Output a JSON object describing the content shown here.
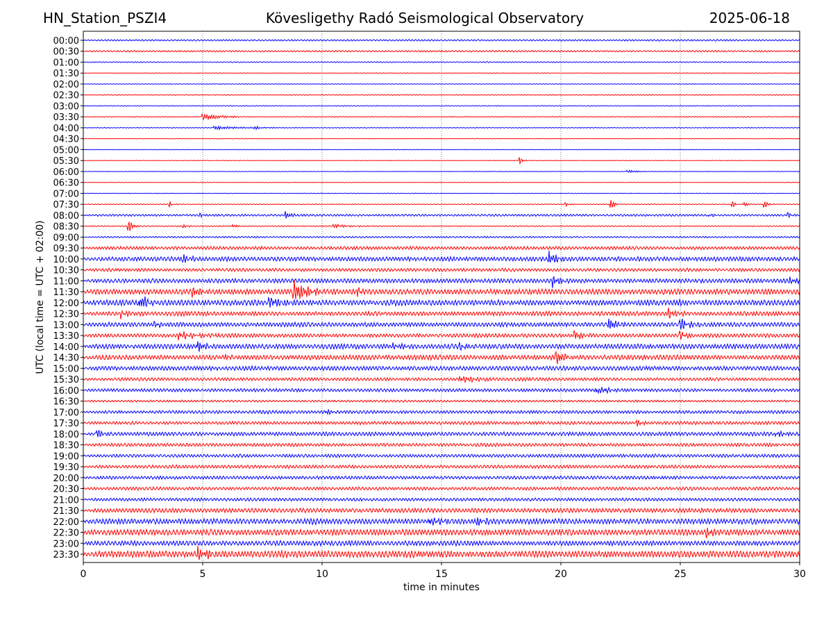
{
  "chart_data": {
    "type": "line",
    "subtype": "helicorder",
    "title_left": "HN_Station_PSZI4",
    "title_center": "Kövesligethy Radó Seismological Observatory",
    "title_right": "2025-06-18",
    "xlabel": "time in minutes",
    "ylabel": "UTC (local time = UTC + 02:00)",
    "xlim": [
      0,
      30
    ],
    "xticks": [
      "0",
      "5",
      "10",
      "15",
      "20",
      "25",
      "30"
    ],
    "grid": "vertical dotted at 5-minute ticks",
    "colors": [
      "#0000ff",
      "#ff0000"
    ],
    "rows": [
      "00:00",
      "00:30",
      "01:00",
      "01:30",
      "02:00",
      "02:30",
      "03:00",
      "03:30",
      "04:00",
      "04:30",
      "05:00",
      "05:30",
      "06:00",
      "06:30",
      "07:00",
      "07:30",
      "08:00",
      "08:30",
      "09:00",
      "09:30",
      "10:00",
      "10:30",
      "11:00",
      "11:30",
      "12:00",
      "12:30",
      "13:00",
      "13:30",
      "14:00",
      "14:30",
      "15:00",
      "15:30",
      "16:00",
      "16:30",
      "17:00",
      "17:30",
      "18:00",
      "18:30",
      "19:00",
      "19:30",
      "20:00",
      "20:30",
      "21:00",
      "21:30",
      "22:00",
      "22:30",
      "23:00",
      "23:30"
    ],
    "noise_level": [
      0.3,
      0.3,
      0.2,
      0.1,
      0.1,
      0.15,
      0.15,
      0.15,
      0.15,
      0.1,
      0.1,
      0.1,
      0.1,
      0.1,
      0.1,
      0.15,
      0.4,
      0.2,
      0.3,
      0.6,
      0.8,
      0.6,
      0.8,
      1.0,
      1.0,
      0.8,
      0.8,
      0.7,
      0.9,
      0.9,
      0.8,
      0.6,
      0.6,
      0.4,
      0.6,
      0.6,
      0.7,
      0.6,
      0.6,
      0.6,
      0.6,
      0.6,
      0.6,
      0.8,
      1.0,
      1.1,
      0.9,
      1.2
    ],
    "events": [
      {
        "row": "03:30",
        "minute": 5.0,
        "amplitude": 2,
        "duration": 1.2
      },
      {
        "row": "04:00",
        "minute": 5.5,
        "amplitude": 1,
        "duration": 1.5
      },
      {
        "row": "04:00",
        "minute": 7.2,
        "amplitude": 0.8,
        "duration": 0.5
      },
      {
        "row": "05:30",
        "minute": 18.3,
        "amplitude": 2,
        "duration": 0.1
      },
      {
        "row": "06:00",
        "minute": 22.8,
        "amplitude": 0.8,
        "duration": 0.5
      },
      {
        "row": "07:30",
        "minute": 3.6,
        "amplitude": 2,
        "duration": 0.1
      },
      {
        "row": "07:30",
        "minute": 20.2,
        "amplitude": 1,
        "duration": 0.2
      },
      {
        "row": "07:30",
        "minute": 22.1,
        "amplitude": 2.5,
        "duration": 0.15
      },
      {
        "row": "07:30",
        "minute": 27.2,
        "amplitude": 1.5,
        "duration": 0.1
      },
      {
        "row": "07:30",
        "minute": 27.7,
        "amplitude": 1.5,
        "duration": 0.1
      },
      {
        "row": "07:30",
        "minute": 28.5,
        "amplitude": 2.5,
        "duration": 0.15
      },
      {
        "row": "08:00",
        "minute": 4.9,
        "amplitude": 1.2,
        "duration": 0.15
      },
      {
        "row": "08:00",
        "minute": 8.5,
        "amplitude": 2,
        "duration": 0.2
      },
      {
        "row": "08:00",
        "minute": 26.2,
        "amplitude": 1,
        "duration": 0.2
      },
      {
        "row": "08:00",
        "minute": 29.5,
        "amplitude": 1.5,
        "duration": 0.2
      },
      {
        "row": "08:30",
        "minute": 1.9,
        "amplitude": 3,
        "duration": 0.2
      },
      {
        "row": "08:30",
        "minute": 4.2,
        "amplitude": 1,
        "duration": 0.2
      },
      {
        "row": "08:30",
        "minute": 6.3,
        "amplitude": 1,
        "duration": 0.2
      },
      {
        "row": "08:30",
        "minute": 10.5,
        "amplitude": 1,
        "duration": 0.8
      },
      {
        "row": "10:00",
        "minute": 4.2,
        "amplitude": 2,
        "duration": 0.4
      },
      {
        "row": "10:00",
        "minute": 19.5,
        "amplitude": 3.5,
        "duration": 0.4
      },
      {
        "row": "11:00",
        "minute": 19.7,
        "amplitude": 2.5,
        "duration": 0.4
      },
      {
        "row": "11:00",
        "minute": 29.6,
        "amplitude": 1.5,
        "duration": 0.8
      },
      {
        "row": "11:30",
        "minute": 4.6,
        "amplitude": 3,
        "duration": 0.4
      },
      {
        "row": "11:30",
        "minute": 8.8,
        "amplitude": 5,
        "duration": 1.0
      },
      {
        "row": "11:30",
        "minute": 11.5,
        "amplitude": 2,
        "duration": 0.3
      },
      {
        "row": "12:00",
        "minute": 2.4,
        "amplitude": 3.5,
        "duration": 0.4
      },
      {
        "row": "12:00",
        "minute": 7.8,
        "amplitude": 2.5,
        "duration": 0.8
      },
      {
        "row": "12:30",
        "minute": 1.6,
        "amplitude": 2,
        "duration": 0.2
      },
      {
        "row": "12:30",
        "minute": 24.5,
        "amplitude": 2.5,
        "duration": 0.5
      },
      {
        "row": "13:00",
        "minute": 3.0,
        "amplitude": 1.5,
        "duration": 0.3
      },
      {
        "row": "13:00",
        "minute": 22.0,
        "amplitude": 3.5,
        "duration": 0.4
      },
      {
        "row": "13:00",
        "minute": 25.0,
        "amplitude": 2.5,
        "duration": 0.6
      },
      {
        "row": "13:30",
        "minute": 4.0,
        "amplitude": 1.5,
        "duration": 1.5
      },
      {
        "row": "13:30",
        "minute": 20.6,
        "amplitude": 2,
        "duration": 0.4
      },
      {
        "row": "13:30",
        "minute": 25.0,
        "amplitude": 2,
        "duration": 0.4
      },
      {
        "row": "14:00",
        "minute": 4.8,
        "amplitude": 3,
        "duration": 0.4
      },
      {
        "row": "14:00",
        "minute": 13.0,
        "amplitude": 1,
        "duration": 1.0
      },
      {
        "row": "14:00",
        "minute": 15.8,
        "amplitude": 1.5,
        "duration": 0.6
      },
      {
        "row": "14:30",
        "minute": 6.0,
        "amplitude": 1.5,
        "duration": 0.3
      },
      {
        "row": "14:30",
        "minute": 19.8,
        "amplitude": 3,
        "duration": 0.5
      },
      {
        "row": "15:30",
        "minute": 15.8,
        "amplitude": 1.5,
        "duration": 1.0
      },
      {
        "row": "16:00",
        "minute": 21.5,
        "amplitude": 2,
        "duration": 0.8
      },
      {
        "row": "17:00",
        "minute": 10.2,
        "amplitude": 1.5,
        "duration": 0.3
      },
      {
        "row": "17:30",
        "minute": 23.2,
        "amplitude": 1.8,
        "duration": 0.3
      },
      {
        "row": "18:00",
        "minute": 0.6,
        "amplitude": 2,
        "duration": 0.3
      },
      {
        "row": "18:00",
        "minute": 29.0,
        "amplitude": 1.2,
        "duration": 0.6
      },
      {
        "row": "22:00",
        "minute": 14.5,
        "amplitude": 2,
        "duration": 0.6
      },
      {
        "row": "22:00",
        "minute": 16.5,
        "amplitude": 2,
        "duration": 0.6
      },
      {
        "row": "22:30",
        "minute": 26.1,
        "amplitude": 2.5,
        "duration": 0.3
      },
      {
        "row": "23:30",
        "minute": 4.8,
        "amplitude": 3,
        "duration": 0.6
      }
    ]
  }
}
